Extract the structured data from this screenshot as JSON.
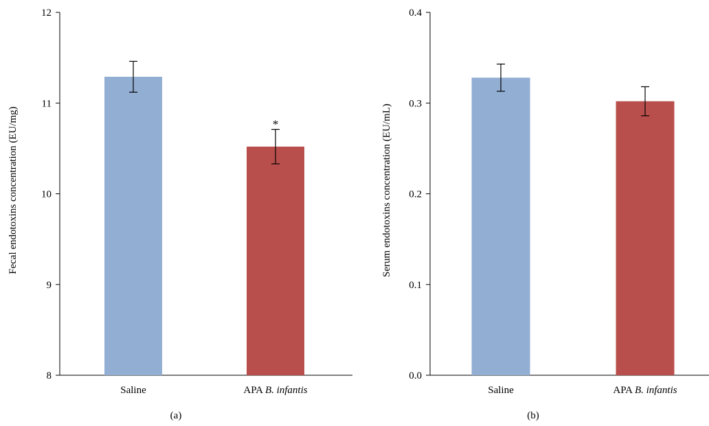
{
  "chart_data": [
    {
      "type": "bar",
      "panel_label": "(a)",
      "ylabel": "Fecal endotoxins concentration (EU/mg)",
      "ylim": [
        8,
        12
      ],
      "yticks": [
        "8",
        "9",
        "10",
        "11",
        "12"
      ],
      "categories": [
        {
          "prefix": "Saline",
          "italic": ""
        },
        {
          "prefix": "APA ",
          "italic": "B. infantis"
        }
      ],
      "values": [
        11.29,
        10.52
      ],
      "errors": [
        0.17,
        0.19
      ],
      "colors": [
        "#92AED3",
        "#B94F4C"
      ],
      "annotations": [
        "",
        "*"
      ],
      "grid": false
    },
    {
      "type": "bar",
      "panel_label": "(b)",
      "ylabel": "Serum endotoxins concentration (EU/mL)",
      "ylim": [
        0,
        0.4
      ],
      "yticks": [
        "0.0",
        "0.1",
        "0.2",
        "0.3",
        "0.4"
      ],
      "categories": [
        {
          "prefix": "Saline",
          "italic": ""
        },
        {
          "prefix": "APA ",
          "italic": "B. infantis"
        }
      ],
      "values": [
        0.328,
        0.302
      ],
      "errors": [
        0.015,
        0.016
      ],
      "colors": [
        "#92AED3",
        "#B94F4C"
      ],
      "annotations": [
        "",
        ""
      ],
      "grid": false
    }
  ]
}
